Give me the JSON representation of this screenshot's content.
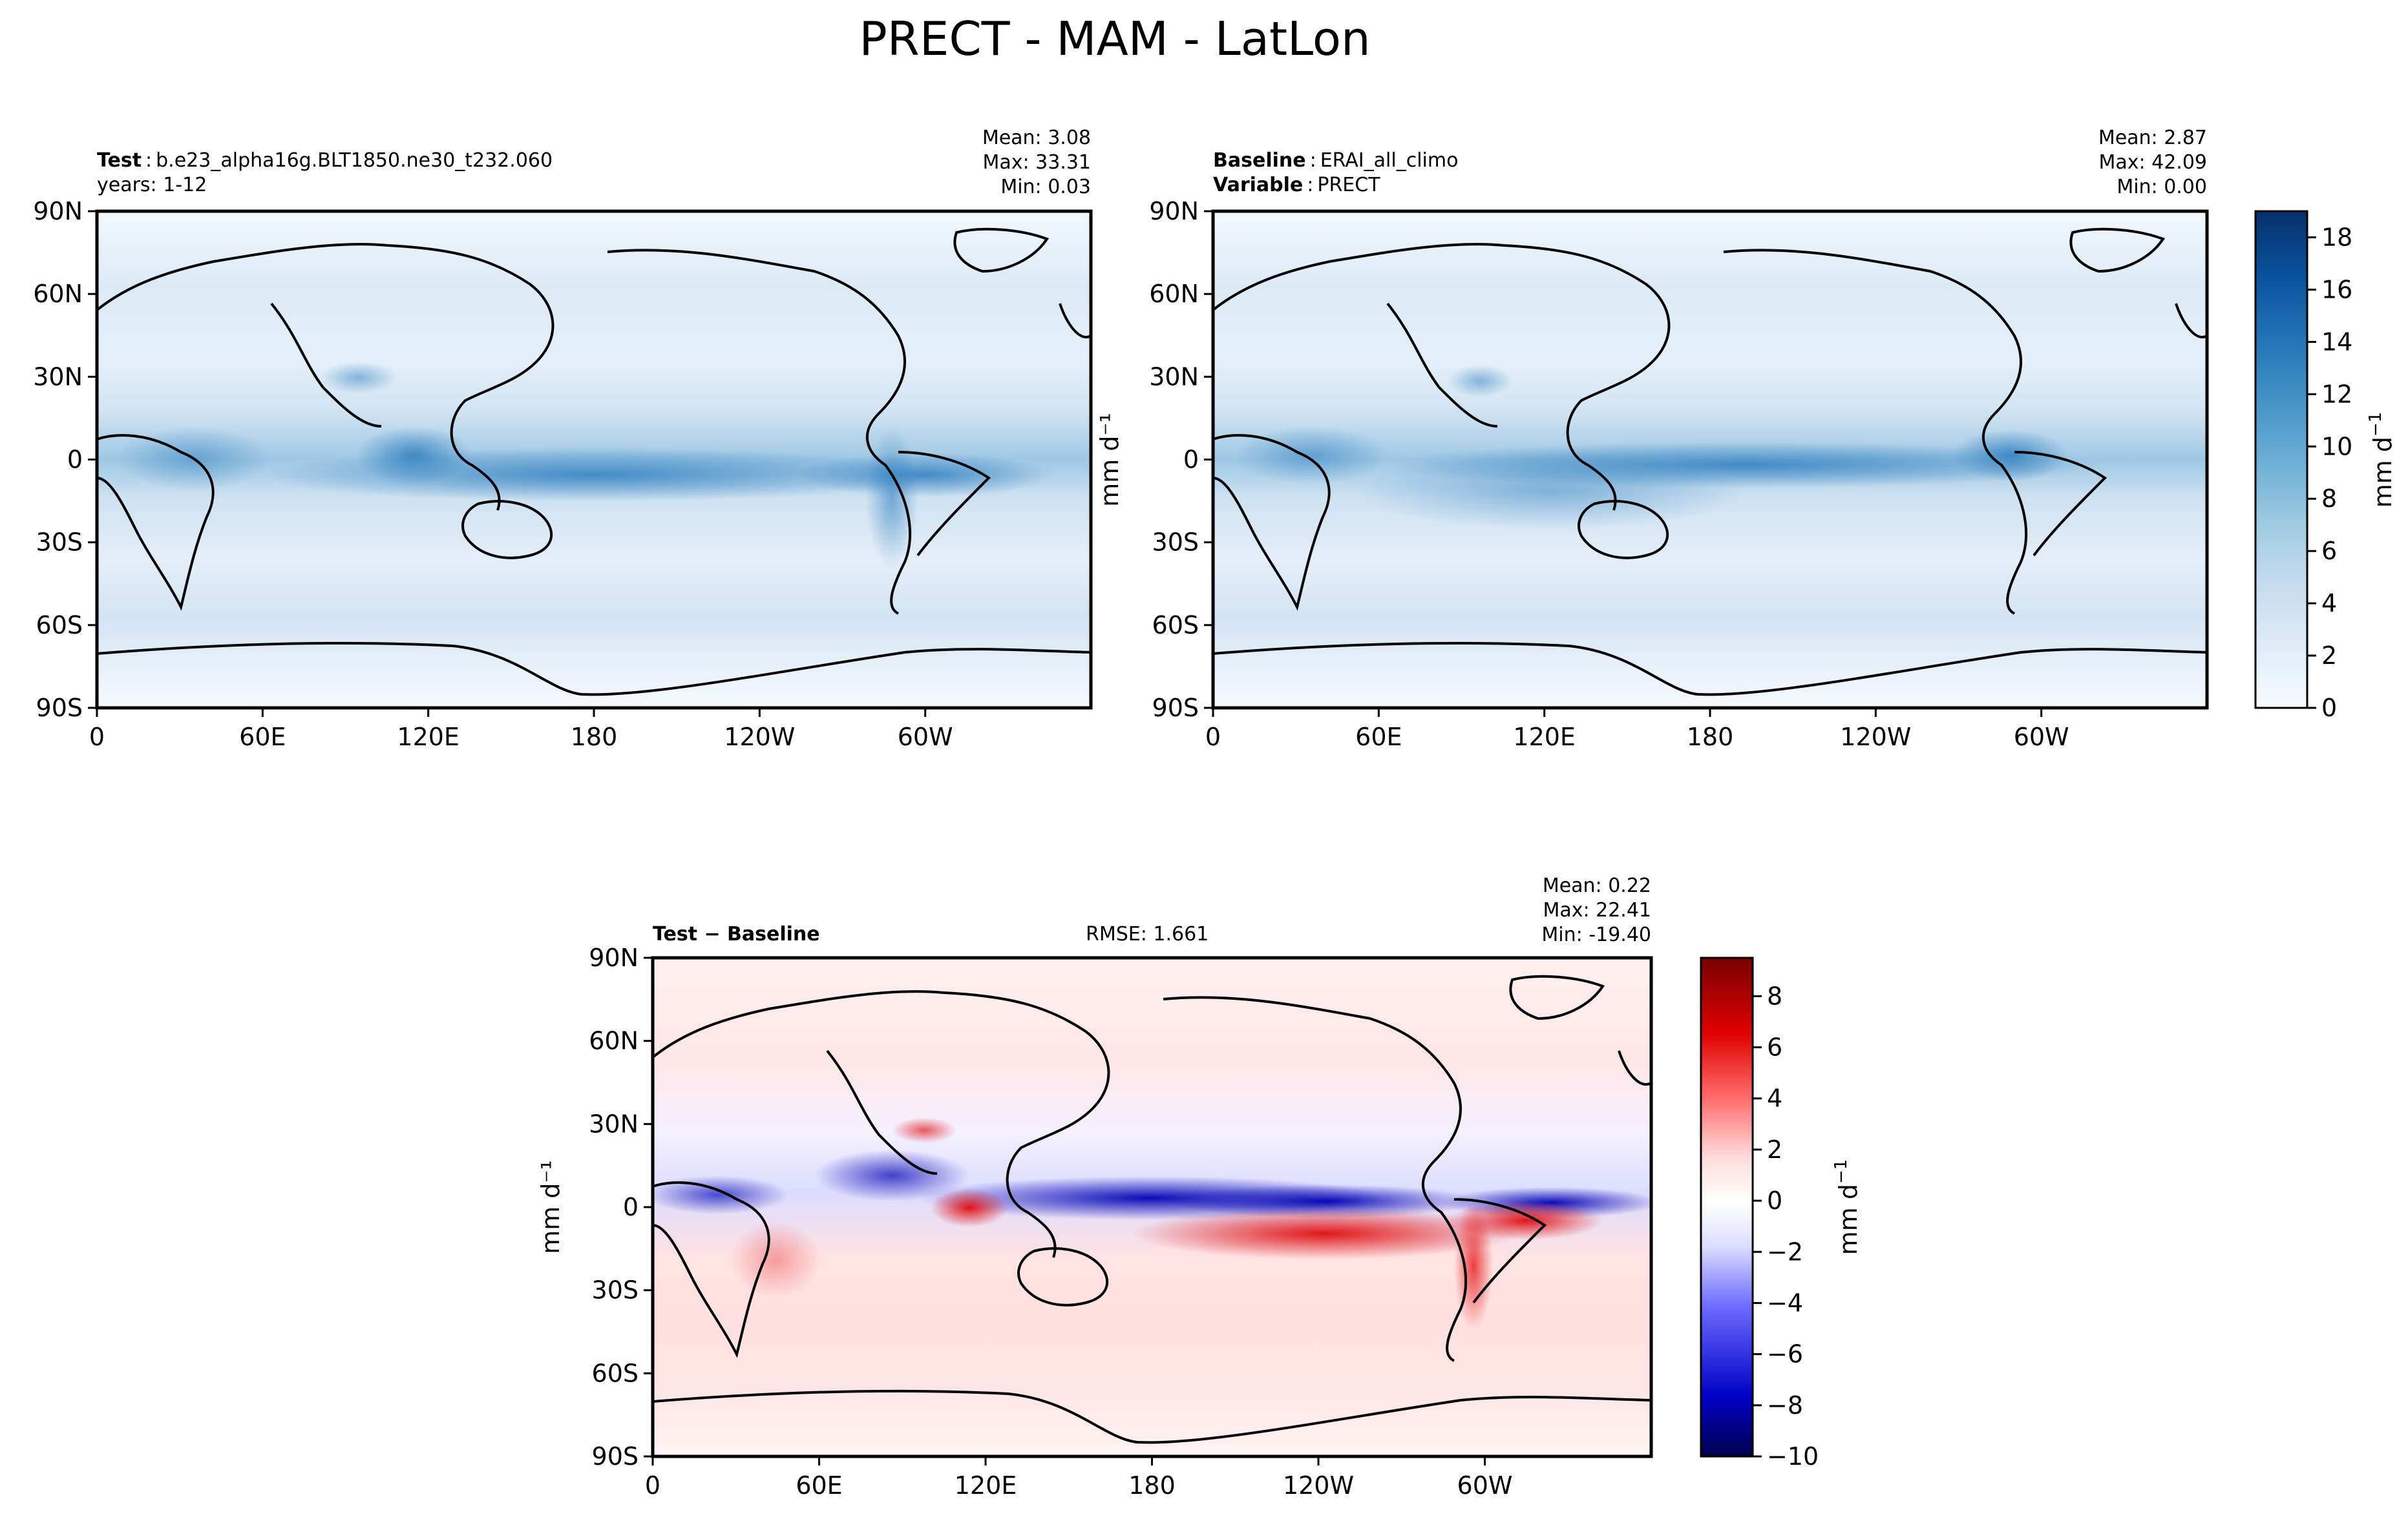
{
  "figure_title": "PRECT - MAM - LatLon",
  "unit_label": "mm d",
  "unit_exponent": "−1",
  "colors": {
    "blues": [
      "#f7fbff",
      "#deebf7",
      "#c6dbef",
      "#9ecae1",
      "#6baed6",
      "#4292c6",
      "#2171b5",
      "#08519c",
      "#08306b"
    ],
    "diverging": [
      "#00004d",
      "#0000c8",
      "#6b6bff",
      "#dcdcff",
      "#ffffff",
      "#ffdcdc",
      "#ff6b6b",
      "#e00000",
      "#7a0000"
    ]
  },
  "chart_data": [
    {
      "type": "heatmap",
      "name": "test",
      "label_bold": "Test",
      "label_sep": ":",
      "label_text": "b.e23_alpha16g.BLT1850.ne30_t232.060",
      "sub_label": "years: 1-12",
      "stats": [
        "Mean:  3.08",
        "Max: 33.31",
        "Min:  0.03"
      ],
      "x_ticks": [
        "0",
        "60E",
        "120E",
        "180",
        "120W",
        "60W"
      ],
      "y_ticks": [
        "90N",
        "60N",
        "30N",
        "0",
        "30S",
        "60S",
        "90S"
      ],
      "ylabel": "",
      "range": [
        0,
        19
      ]
    },
    {
      "type": "heatmap",
      "name": "baseline",
      "label_bold": "Baseline",
      "label_sep": ":",
      "label_text": "ERAI_all_climo",
      "sub_label_bold": "Variable",
      "sub_label_sep": ":",
      "sub_label_text": "PRECT",
      "stats": [
        "Mean:  2.87",
        "Max: 42.09",
        "Min:  0.00"
      ],
      "x_ticks": [
        "0",
        "60E",
        "120E",
        "180",
        "120W",
        "60W"
      ],
      "y_ticks": [
        "90N",
        "60N",
        "30N",
        "0",
        "30S",
        "60S",
        "90S"
      ],
      "ylabel": "mm d⁻¹",
      "range": [
        0,
        19
      ],
      "colorbar_ticks": [
        "0",
        "2",
        "4",
        "6",
        "8",
        "10",
        "12",
        "14",
        "16",
        "18"
      ]
    },
    {
      "type": "heatmap",
      "name": "difference",
      "label_bold": "Test − Baseline",
      "rmse": "RMSE: 1.661",
      "stats": [
        "Mean:  0.22",
        "Max: 22.41",
        "Min: -19.40"
      ],
      "x_ticks": [
        "0",
        "60E",
        "120E",
        "180",
        "120W",
        "60W"
      ],
      "y_ticks": [
        "90N",
        "60N",
        "30N",
        "0",
        "30S",
        "60S",
        "90S"
      ],
      "ylabel": "mm d⁻¹",
      "range": [
        -10,
        9.5
      ],
      "colorbar_ticks": [
        "−10",
        "−8",
        "−6",
        "−4",
        "−2",
        "0",
        "2",
        "4",
        "6",
        "8"
      ]
    }
  ]
}
